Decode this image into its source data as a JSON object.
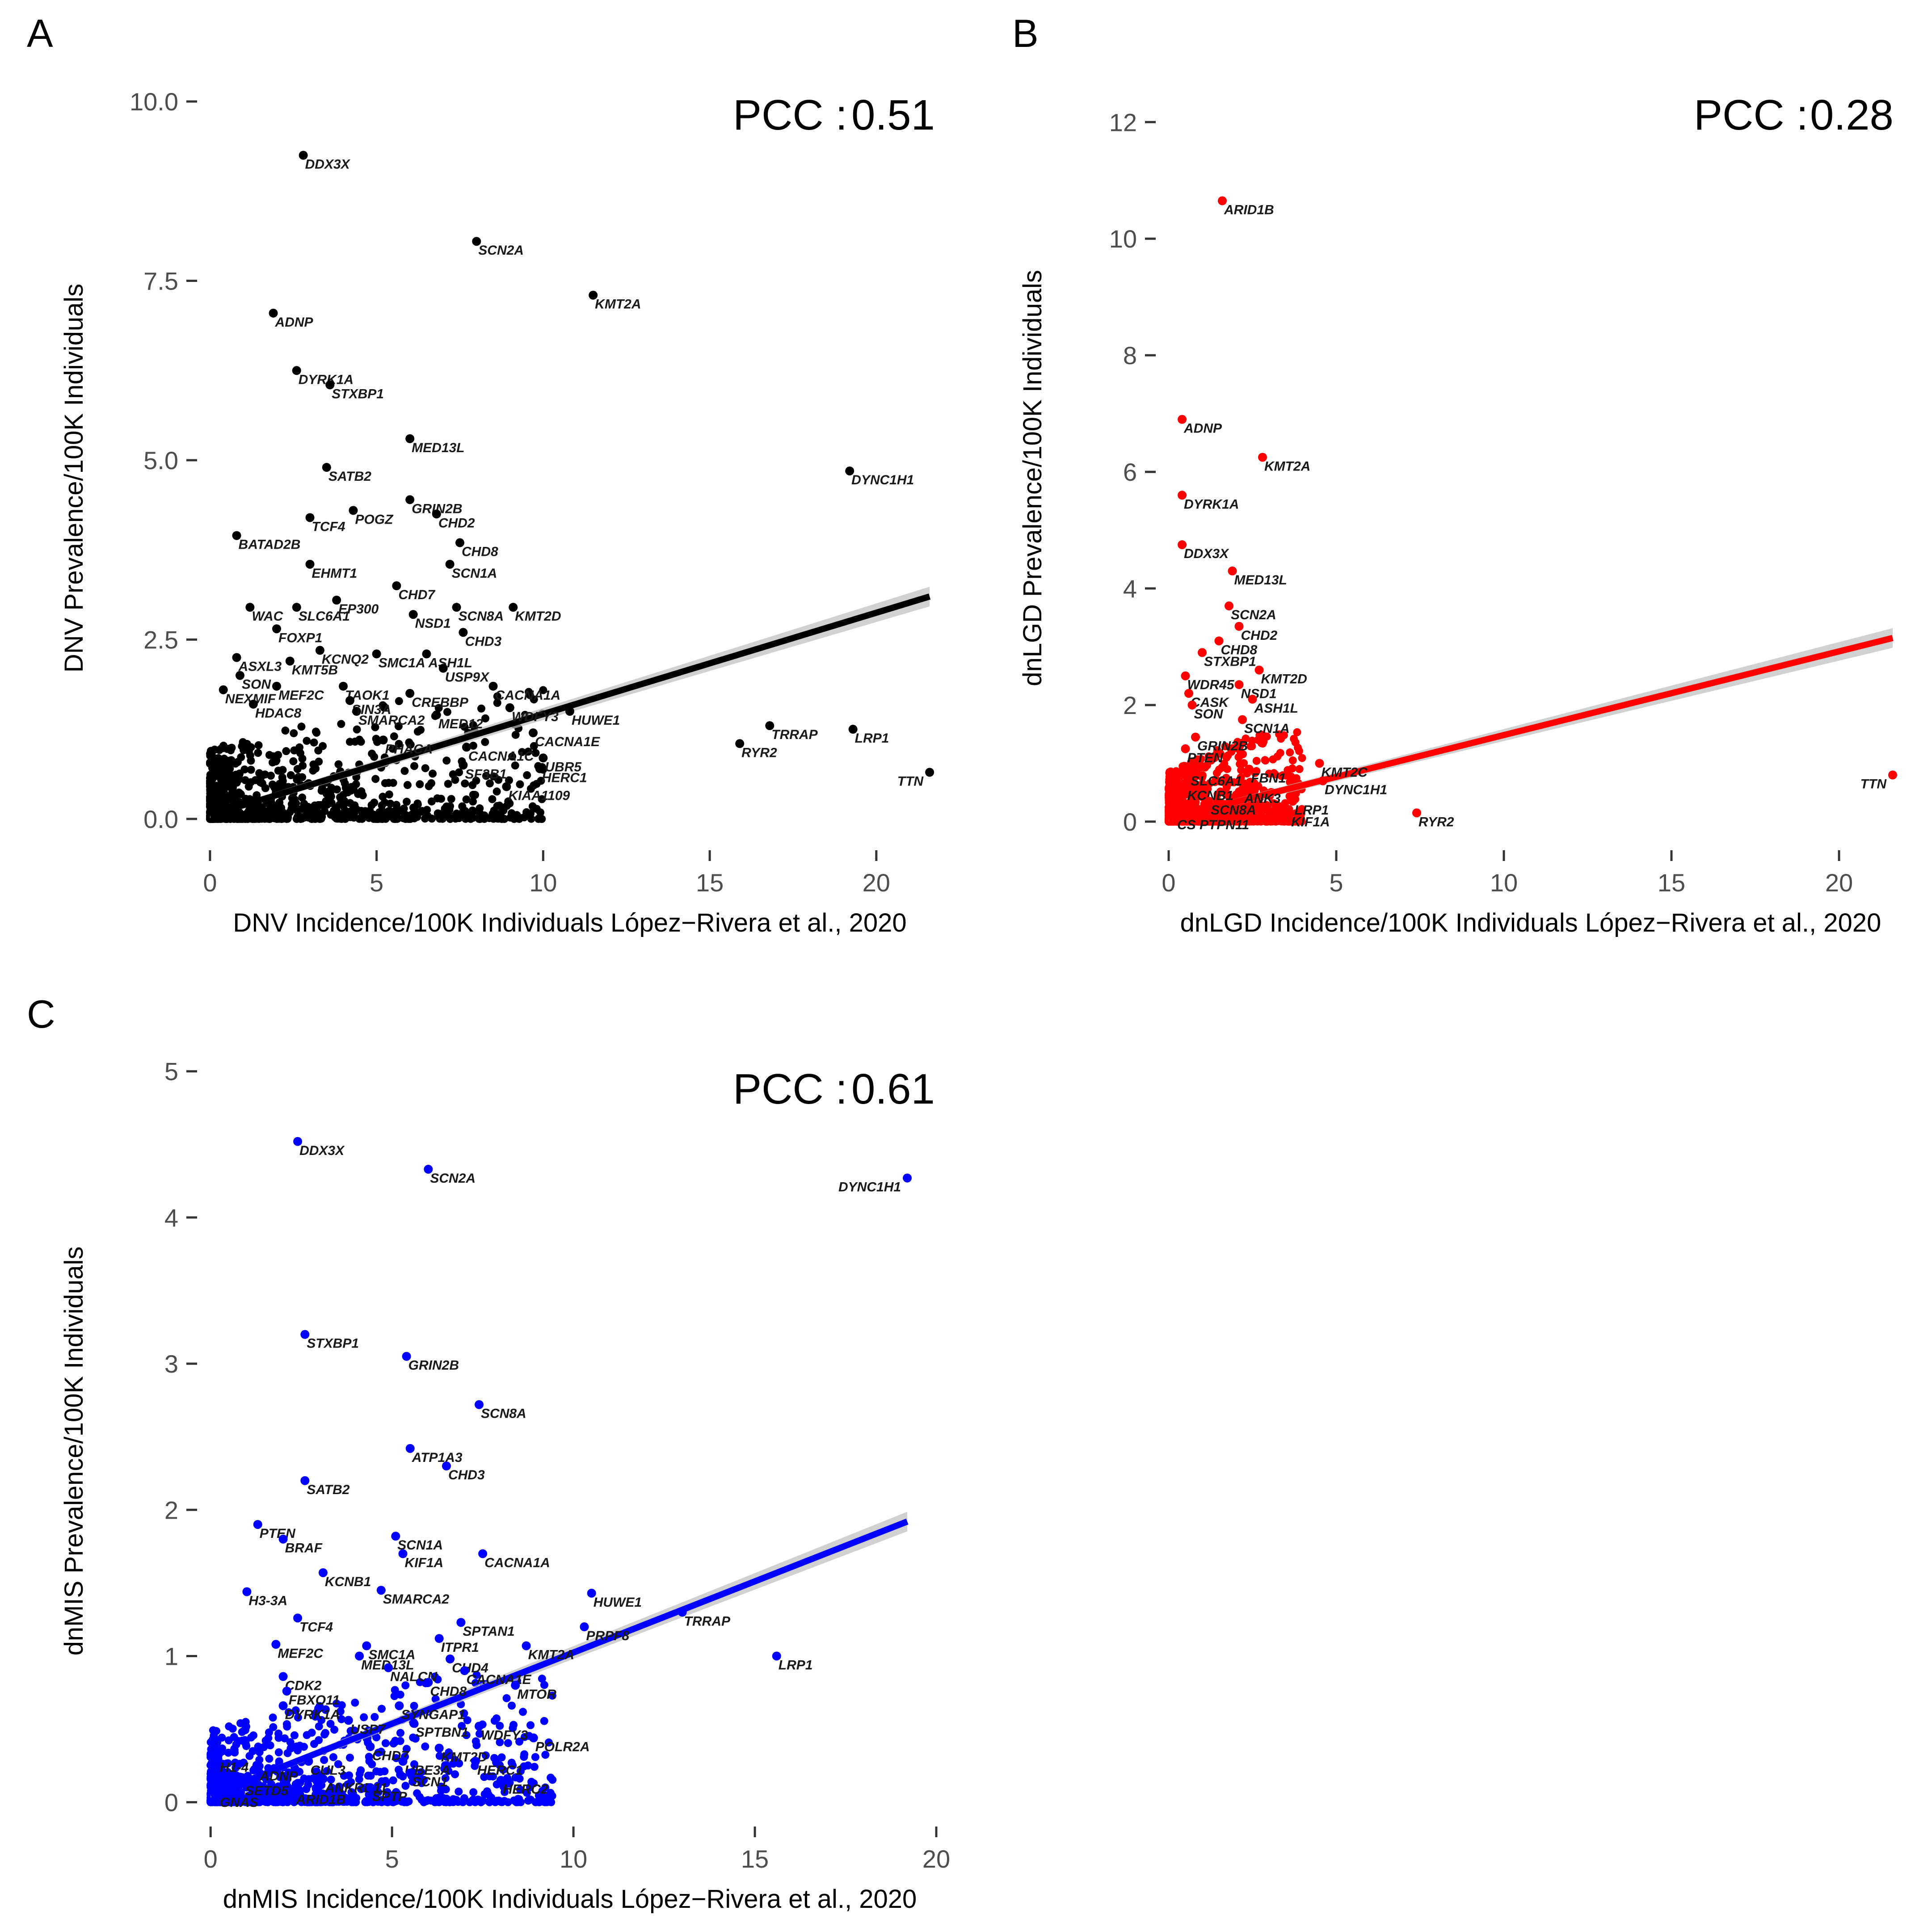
{
  "chart_data": [
    {
      "panel": "A",
      "type": "scatter",
      "color": "#000000",
      "xlabel": "DNV Incidence/100K Individuals López−Rivera et al., 2020",
      "ylabel": "DNV Prevalence/100K Individuals",
      "xlim": [
        -0.2,
        21.8
      ],
      "ylim": [
        -0.2,
        10.2
      ],
      "xticks": [
        0,
        5,
        10,
        15,
        20
      ],
      "yticks": [
        0.0,
        2.5,
        5.0,
        7.5,
        10.0
      ],
      "xtick_labels": [
        "0",
        "5",
        "10",
        "15",
        "20"
      ],
      "ytick_labels": [
        "0.0",
        "2.5",
        "5.0",
        "7.5",
        "10.0"
      ],
      "pcc_label": "PCC :",
      "pcc_value": "0.51",
      "fit": {
        "x": [
          0,
          21.6
        ],
        "y": [
          0.05,
          3.1
        ]
      },
      "labeled_points": [
        {
          "gene": "DDX3X",
          "x": 2.8,
          "y": 9.25
        },
        {
          "gene": "SCN2A",
          "x": 8.0,
          "y": 8.05
        },
        {
          "gene": "KMT2A",
          "x": 11.5,
          "y": 7.3
        },
        {
          "gene": "ADNP",
          "x": 1.9,
          "y": 7.05
        },
        {
          "gene": "DYRK1A",
          "x": 2.6,
          "y": 6.25
        },
        {
          "gene": "STXBP1",
          "x": 3.6,
          "y": 6.05
        },
        {
          "gene": "MED13L",
          "x": 6.0,
          "y": 5.3
        },
        {
          "gene": "DYNC1H1",
          "x": 19.2,
          "y": 4.85
        },
        {
          "gene": "SATB2",
          "x": 3.5,
          "y": 4.9
        },
        {
          "gene": "GRIN2B",
          "x": 6.0,
          "y": 4.45
        },
        {
          "gene": "POGZ",
          "x": 4.3,
          "y": 4.3
        },
        {
          "gene": "TCF4",
          "x": 3.0,
          "y": 4.2
        },
        {
          "gene": "CHD2",
          "x": 6.8,
          "y": 4.25
        },
        {
          "gene": "BATAD2B",
          "x": 0.8,
          "y": 3.95
        },
        {
          "gene": "CHD8",
          "x": 7.5,
          "y": 3.85
        },
        {
          "gene": "EHMT1",
          "x": 3.0,
          "y": 3.55
        },
        {
          "gene": "SCN1A",
          "x": 7.2,
          "y": 3.55
        },
        {
          "gene": "CHD7",
          "x": 5.6,
          "y": 3.25
        },
        {
          "gene": "EP300",
          "x": 3.8,
          "y": 3.05
        },
        {
          "gene": "WAC",
          "x": 1.2,
          "y": 2.95
        },
        {
          "gene": "SLC6A1",
          "x": 2.6,
          "y": 2.95
        },
        {
          "gene": "SCN8A",
          "x": 7.4,
          "y": 2.95
        },
        {
          "gene": "KMT2D",
          "x": 9.1,
          "y": 2.95
        },
        {
          "gene": "NSD1",
          "x": 6.1,
          "y": 2.85
        },
        {
          "gene": "FOXP1",
          "x": 2.0,
          "y": 2.65
        },
        {
          "gene": "CHD3",
          "x": 7.6,
          "y": 2.6
        },
        {
          "gene": "KCNQ2",
          "x": 3.3,
          "y": 2.35
        },
        {
          "gene": "SMC1A",
          "x": 5.0,
          "y": 2.3
        },
        {
          "gene": "ASH1L",
          "x": 6.5,
          "y": 2.3
        },
        {
          "gene": "ASXL3",
          "x": 0.8,
          "y": 2.25
        },
        {
          "gene": "KMT5B",
          "x": 2.4,
          "y": 2.2
        },
        {
          "gene": "USP9X",
          "x": 7.0,
          "y": 2.1
        },
        {
          "gene": "SON",
          "x": 0.9,
          "y": 2.0
        },
        {
          "gene": "TAOK1",
          "x": 4.0,
          "y": 1.85
        },
        {
          "gene": "MEF2C",
          "x": 2.0,
          "y": 1.85
        },
        {
          "gene": "CACNA1A",
          "x": 8.5,
          "y": 1.85
        },
        {
          "gene": "NEXMIF",
          "x": 0.4,
          "y": 1.8
        },
        {
          "gene": "CREBBP",
          "x": 6.0,
          "y": 1.75
        },
        {
          "gene": "SIN3A",
          "x": 4.2,
          "y": 1.65
        },
        {
          "gene": "HDAC8",
          "x": 1.3,
          "y": 1.6
        },
        {
          "gene": "WDFY3",
          "x": 9.0,
          "y": 1.55
        },
        {
          "gene": "HUWE1",
          "x": 10.8,
          "y": 1.5
        },
        {
          "gene": "SMARCA2",
          "x": 4.4,
          "y": 1.5
        },
        {
          "gene": "MED12",
          "x": 6.8,
          "y": 1.45
        },
        {
          "gene": "TRRAP",
          "x": 16.8,
          "y": 1.3
        },
        {
          "gene": "LRP1",
          "x": 19.3,
          "y": 1.25
        },
        {
          "gene": "CACNA1E",
          "x": 9.7,
          "y": 1.2
        },
        {
          "gene": "PHACA",
          "x": 5.2,
          "y": 1.1
        },
        {
          "gene": "RYR2",
          "x": 15.9,
          "y": 1.05
        },
        {
          "gene": "CACNA1C",
          "x": 7.7,
          "y": 1.0
        },
        {
          "gene": "UBR5",
          "x": 10.0,
          "y": 0.85
        },
        {
          "gene": "SF3B1",
          "x": 7.6,
          "y": 0.75
        },
        {
          "gene": "HERC1",
          "x": 9.9,
          "y": 0.7
        },
        {
          "gene": "TTN",
          "x": 21.6,
          "y": 0.65
        },
        {
          "gene": "KIAA1109",
          "x": 8.9,
          "y": 0.45
        }
      ]
    },
    {
      "panel": "B",
      "type": "scatter",
      "color": "#ff0000",
      "xlabel": "dnLGD Incidence/100K Individuals López−Rivera et al., 2020",
      "ylabel": "dnLGD Prevalence/100K Individuals",
      "xlim": [
        -0.2,
        21.8
      ],
      "ylim": [
        -0.2,
        12.6
      ],
      "xticks": [
        0,
        5,
        10,
        15,
        20
      ],
      "yticks": [
        0,
        2,
        4,
        6,
        8,
        10,
        12
      ],
      "xtick_labels": [
        "0",
        "5",
        "10",
        "15",
        "20"
      ],
      "ytick_labels": [
        "0",
        "2",
        "4",
        "6",
        "8",
        "10",
        "12"
      ],
      "pcc_label": "PCC :",
      "pcc_value": "0.28",
      "fit": {
        "x": [
          0,
          21.6
        ],
        "y": [
          0.05,
          3.15
        ]
      },
      "labeled_points": [
        {
          "gene": "ARID1B",
          "x": 1.6,
          "y": 10.65
        },
        {
          "gene": "ADNP",
          "x": 0.4,
          "y": 6.9
        },
        {
          "gene": "KMT2A",
          "x": 2.8,
          "y": 6.25
        },
        {
          "gene": "DYRK1A",
          "x": 0.4,
          "y": 5.6
        },
        {
          "gene": "DDX3X",
          "x": 0.4,
          "y": 4.75
        },
        {
          "gene": "MED13L",
          "x": 1.9,
          "y": 4.3
        },
        {
          "gene": "SCN2A",
          "x": 1.8,
          "y": 3.7
        },
        {
          "gene": "CHD2",
          "x": 2.1,
          "y": 3.35
        },
        {
          "gene": "CHD8",
          "x": 1.5,
          "y": 3.1
        },
        {
          "gene": "STXBP1",
          "x": 1.0,
          "y": 2.9
        },
        {
          "gene": "KMT2D",
          "x": 2.7,
          "y": 2.6
        },
        {
          "gene": "WDR45",
          "x": 0.5,
          "y": 2.5
        },
        {
          "gene": "NSD1",
          "x": 2.1,
          "y": 2.35
        },
        {
          "gene": "CASK",
          "x": 0.6,
          "y": 2.2
        },
        {
          "gene": "ASH1L",
          "x": 2.5,
          "y": 2.1
        },
        {
          "gene": "SON",
          "x": 0.7,
          "y": 2.0
        },
        {
          "gene": "SCN1A",
          "x": 2.2,
          "y": 1.75
        },
        {
          "gene": "GRIN2B",
          "x": 0.8,
          "y": 1.45
        },
        {
          "gene": "PTEN",
          "x": 0.5,
          "y": 1.25
        },
        {
          "gene": "KMT2C",
          "x": 4.5,
          "y": 1.0
        },
        {
          "gene": "FBN1",
          "x": 2.4,
          "y": 0.9
        },
        {
          "gene": "SLC6A1",
          "x": 0.6,
          "y": 0.85
        },
        {
          "gene": "DYNC1H1",
          "x": 4.6,
          "y": 0.7
        },
        {
          "gene": "KCNB1",
          "x": 0.5,
          "y": 0.6
        },
        {
          "gene": "ANK3",
          "x": 2.2,
          "y": 0.55
        },
        {
          "gene": "SCN8A",
          "x": 1.2,
          "y": 0.35
        },
        {
          "gene": "LRP1",
          "x": 3.7,
          "y": 0.35
        },
        {
          "gene": "KIF1A",
          "x": 3.6,
          "y": 0.15
        },
        {
          "gene": "CS PTPN11",
          "x": 0.2,
          "y": 0.1
        },
        {
          "gene": "RYR2",
          "x": 7.4,
          "y": 0.15
        },
        {
          "gene": "TTN",
          "x": 21.6,
          "y": 0.8
        }
      ]
    },
    {
      "panel": "C",
      "type": "scatter",
      "color": "#0000ff",
      "xlabel": "dnMIS Incidence/100K Individuals López−Rivera et al., 2020",
      "ylabel": "dnMIS Prevalence/100K Individuals",
      "xlim": [
        -0.2,
        20.0
      ],
      "ylim": [
        -0.05,
        5.1
      ],
      "xticks": [
        0,
        5,
        10,
        15,
        20
      ],
      "yticks": [
        0,
        1,
        2,
        3,
        4,
        5
      ],
      "xtick_labels": [
        "0",
        "5",
        "10",
        "15",
        "20"
      ],
      "ytick_labels": [
        "0",
        "1",
        "2",
        "3",
        "4",
        "5"
      ],
      "pcc_label": "PCC :",
      "pcc_value": "0.61",
      "fit": {
        "x": [
          0,
          19.2
        ],
        "y": [
          0.05,
          1.92
        ]
      },
      "labeled_points": [
        {
          "gene": "DDX3X",
          "x": 2.4,
          "y": 4.52
        },
        {
          "gene": "SCN2A",
          "x": 6.0,
          "y": 4.33
        },
        {
          "gene": "DYNC1H1",
          "x": 19.2,
          "y": 4.27
        },
        {
          "gene": "STXBP1",
          "x": 2.6,
          "y": 3.2
        },
        {
          "gene": "GRIN2B",
          "x": 5.4,
          "y": 3.05
        },
        {
          "gene": "SCN8A",
          "x": 7.4,
          "y": 2.72
        },
        {
          "gene": "ATP1A3",
          "x": 5.5,
          "y": 2.42
        },
        {
          "gene": "CHD3",
          "x": 6.5,
          "y": 2.3
        },
        {
          "gene": "SATB2",
          "x": 2.6,
          "y": 2.2
        },
        {
          "gene": "PTEN",
          "x": 1.3,
          "y": 1.9
        },
        {
          "gene": "BRAF",
          "x": 2.0,
          "y": 1.8
        },
        {
          "gene": "SCN1A",
          "x": 5.1,
          "y": 1.82
        },
        {
          "gene": "KIF1A",
          "x": 5.3,
          "y": 1.7
        },
        {
          "gene": "CACNA1A",
          "x": 7.5,
          "y": 1.7
        },
        {
          "gene": "KCNB1",
          "x": 3.1,
          "y": 1.57
        },
        {
          "gene": "H3-3A",
          "x": 1.0,
          "y": 1.44
        },
        {
          "gene": "SMARCA2",
          "x": 4.7,
          "y": 1.45
        },
        {
          "gene": "HUWE1",
          "x": 10.5,
          "y": 1.43
        },
        {
          "gene": "TRRAP",
          "x": 13.0,
          "y": 1.3
        },
        {
          "gene": "TCF4",
          "x": 2.4,
          "y": 1.26
        },
        {
          "gene": "SPTAN1",
          "x": 6.9,
          "y": 1.23
        },
        {
          "gene": "PRPF8",
          "x": 10.3,
          "y": 1.2
        },
        {
          "gene": "ITPR1",
          "x": 6.3,
          "y": 1.12
        },
        {
          "gene": "LRP1",
          "x": 15.6,
          "y": 1.0
        },
        {
          "gene": "MEF2C",
          "x": 1.8,
          "y": 1.08
        },
        {
          "gene": "SMC1A",
          "x": 4.3,
          "y": 1.07
        },
        {
          "gene": "KMT2A",
          "x": 8.7,
          "y": 1.07
        },
        {
          "gene": "MED13L",
          "x": 4.1,
          "y": 1.0
        },
        {
          "gene": "CHD4",
          "x": 6.6,
          "y": 0.98
        },
        {
          "gene": "NALCN",
          "x": 4.9,
          "y": 0.92
        },
        {
          "gene": "CACNA1E",
          "x": 7.0,
          "y": 0.9
        },
        {
          "gene": "CHD8",
          "x": 6.0,
          "y": 0.82
        },
        {
          "gene": "MTOR",
          "x": 8.4,
          "y": 0.8
        },
        {
          "gene": "CDK2",
          "x": 2.0,
          "y": 0.86
        },
        {
          "gene": "FBXO11",
          "x": 2.1,
          "y": 0.76
        },
        {
          "gene": "DYRK1A",
          "x": 2.0,
          "y": 0.66
        },
        {
          "gene": "SYNGAP1",
          "x": 5.2,
          "y": 0.66
        },
        {
          "gene": "SPTBN1",
          "x": 5.6,
          "y": 0.54
        },
        {
          "gene": "WDFY3",
          "x": 7.4,
          "y": 0.52
        },
        {
          "gene": "POLR2A",
          "x": 8.9,
          "y": 0.44
        },
        {
          "gene": "USP7",
          "x": 3.8,
          "y": 0.56
        },
        {
          "gene": "KMT2D",
          "x": 6.3,
          "y": 0.37
        },
        {
          "gene": "HERC1",
          "x": 7.3,
          "y": 0.28
        },
        {
          "gene": "HERC2",
          "x": 8.0,
          "y": 0.15
        },
        {
          "gene": "CHD7",
          "x": 4.4,
          "y": 0.38
        },
        {
          "gene": "UBE3A",
          "x": 5.3,
          "y": 0.28
        },
        {
          "gene": "CUL3",
          "x": 2.7,
          "y": 0.28
        },
        {
          "gene": "ADNP",
          "x": 1.3,
          "y": 0.24
        },
        {
          "gene": "H1-4",
          "x": 0.2,
          "y": 0.3
        },
        {
          "gene": "SETD5",
          "x": 0.9,
          "y": 0.14
        },
        {
          "gene": "ANKRD11",
          "x": 3.1,
          "y": 0.16
        },
        {
          "gene": "ARID1B",
          "x": 2.3,
          "y": 0.08
        },
        {
          "gene": "SCN1",
          "x": 5.5,
          "y": 0.2
        },
        {
          "gene": "SPTP",
          "x": 4.4,
          "y": 0.1
        },
        {
          "gene": "GNAS",
          "x": 0.2,
          "y": 0.06
        }
      ]
    }
  ]
}
